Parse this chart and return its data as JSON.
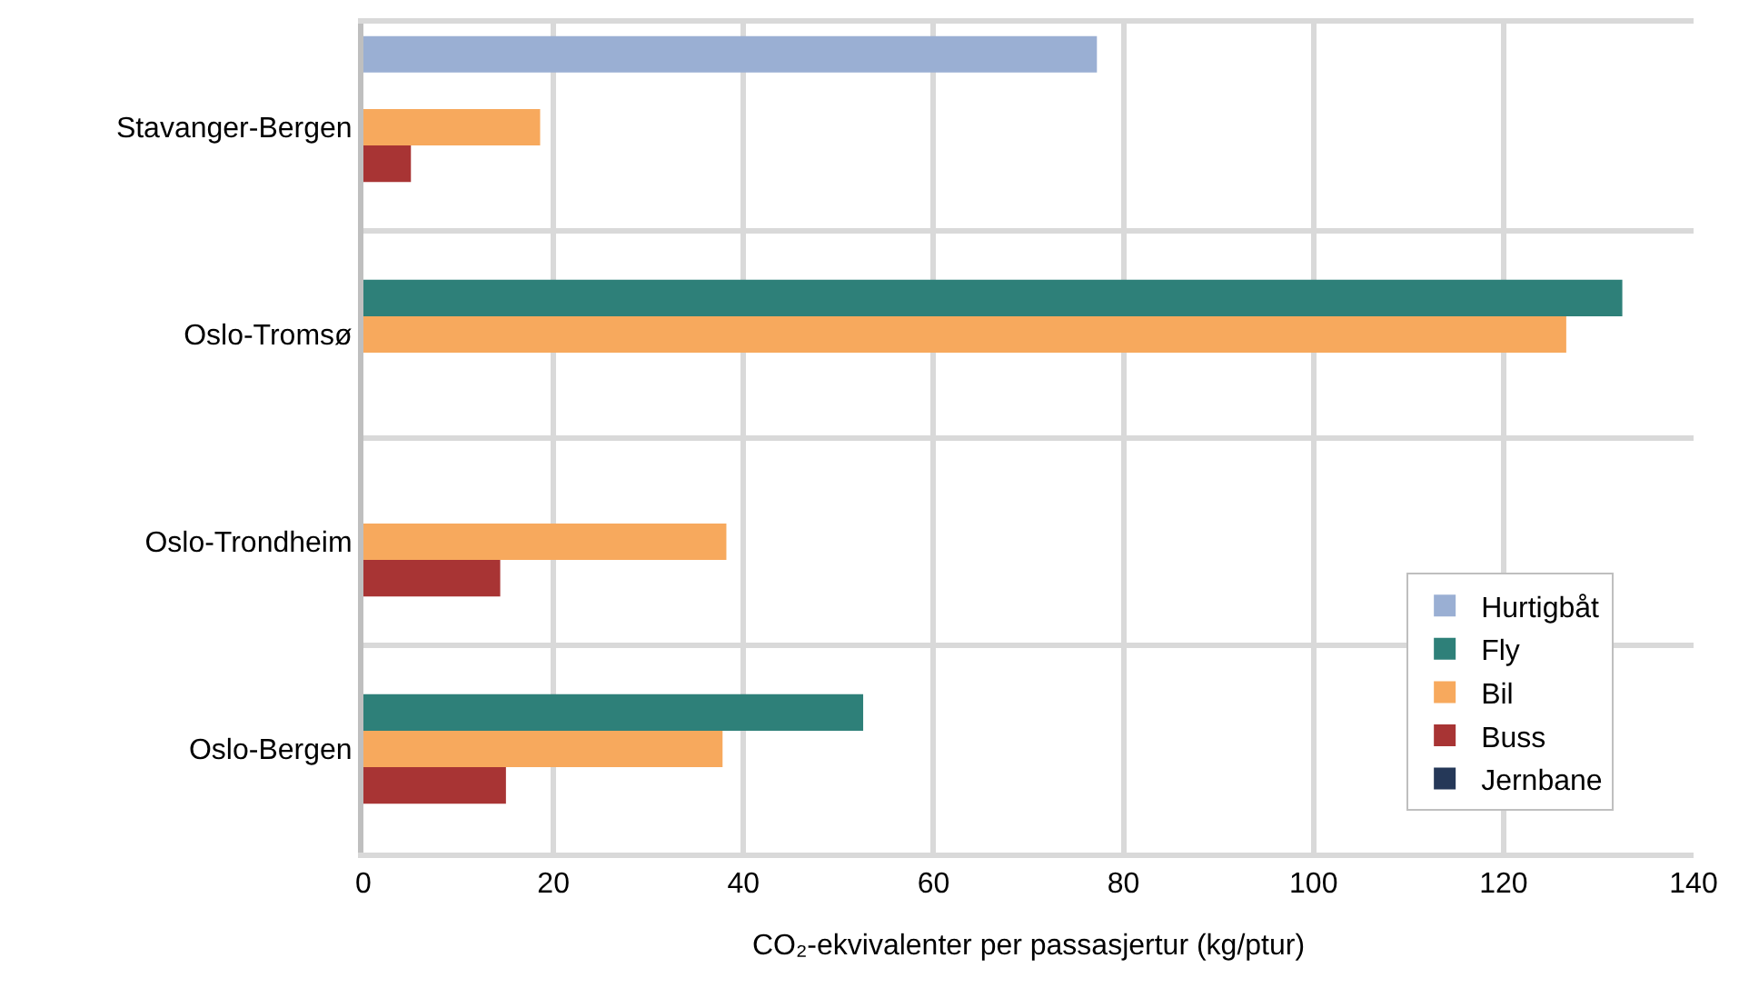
{
  "chart_data": {
    "type": "bar",
    "orientation": "horizontal",
    "categories": [
      "Stavanger-Bergen",
      "Oslo-Tromsø",
      "Oslo-Trondheim",
      "Oslo-Bergen"
    ],
    "series": [
      {
        "name": "Hurtigbåt",
        "color": "#9aafd3",
        "values": [
          77.2,
          null,
          null,
          null
        ]
      },
      {
        "name": "Fly",
        "color": "#2e8079",
        "values": [
          null,
          132.5,
          null,
          52.6
        ]
      },
      {
        "name": "Bil",
        "color": "#f7a95d",
        "values": [
          18.6,
          126.6,
          38.2,
          37.8
        ]
      },
      {
        "name": "Buss",
        "color": "#a83434",
        "values": [
          5.0,
          null,
          14.4,
          15.0
        ]
      },
      {
        "name": "Jernbane",
        "color": "#253858",
        "values": [
          null,
          null,
          null,
          null
        ]
      }
    ],
    "xlabel": "CO₂-ekvivalenter per passasjertur (kg/ptur)",
    "xlim": [
      0,
      140
    ],
    "xticks": [
      0,
      20,
      40,
      60,
      80,
      100,
      120,
      140
    ],
    "grid": true,
    "legend": "bottom right"
  }
}
